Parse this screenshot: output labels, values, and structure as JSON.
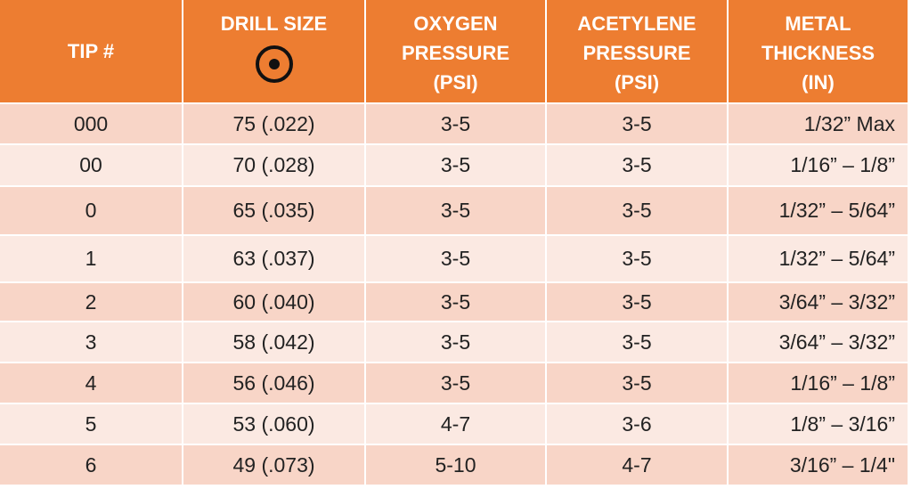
{
  "table": {
    "header": [
      [
        "TIP #"
      ],
      [
        "DRILL SIZE"
      ],
      [
        "OXYGEN",
        "PRESSURE",
        "(PSI)"
      ],
      [
        "ACETYLENE",
        "PRESSURE",
        "(PSI)"
      ],
      [
        "METAL",
        "THICKNESS",
        "(IN)"
      ]
    ],
    "rows": [
      [
        "000",
        "75 (.022)",
        "3-5",
        "3-5",
        "1/32” Max"
      ],
      [
        "00",
        "70 (.028)",
        "3-5",
        "3-5",
        "1/16” – 1/8”"
      ],
      [
        "0",
        "65 (.035)",
        "3-5",
        "3-5",
        "1/32” – 5/64”"
      ],
      [
        "1",
        "63 (.037)",
        "3-5",
        "3-5",
        "1/32” – 5/64”"
      ],
      [
        "2",
        "60 (.040)",
        "3-5",
        "3-5",
        "3/64” – 3/32”"
      ],
      [
        "3",
        "58 (.042)",
        "3-5",
        "3-5",
        "3/64” – 3/32”"
      ],
      [
        "4",
        "56 (.046)",
        "3-5",
        "3-5",
        "1/16” – 1/8”"
      ],
      [
        "5",
        "53 (.060)",
        "4-7",
        "3-6",
        "1/8” – 3/16”"
      ],
      [
        "6",
        "49 (.073)",
        "5-10",
        "4-7",
        "3/16” – 1/4\""
      ]
    ]
  }
}
